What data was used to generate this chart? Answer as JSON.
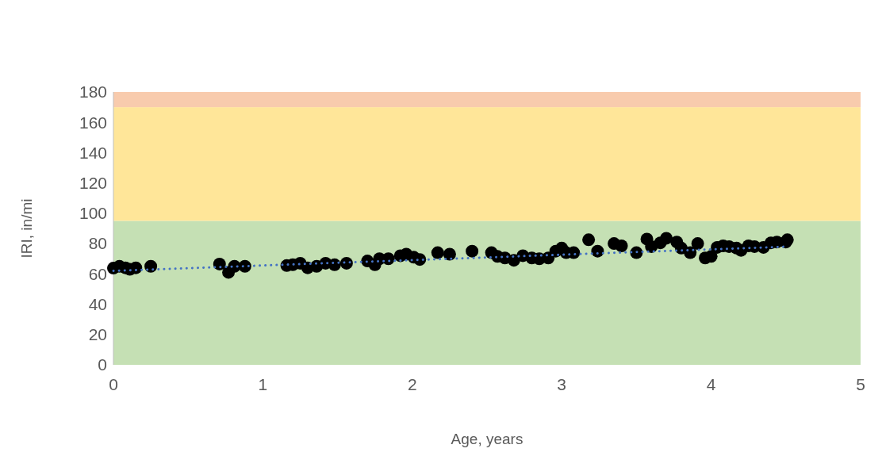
{
  "chart_data": {
    "type": "scatter",
    "xlabel": "Age, years",
    "ylabel": "IRI, in/mi",
    "xlim": [
      0,
      5
    ],
    "xticks": [
      0,
      1,
      2,
      3,
      4,
      5
    ],
    "ylim": [
      0,
      180
    ],
    "yticks": [
      0,
      20,
      40,
      60,
      80,
      100,
      120,
      140,
      160,
      180
    ],
    "grid": false,
    "marker": "circle",
    "bands": [
      {
        "axis": "y",
        "from": 0,
        "to": 95,
        "color": "#c5e0b4"
      },
      {
        "axis": "y",
        "from": 95,
        "to": 170,
        "color": "#ffe699"
      },
      {
        "axis": "y",
        "from": 170,
        "to": 180,
        "color": "#f8cbad"
      }
    ],
    "series": [
      {
        "color": "#000000",
        "x": [
          0,
          0.04,
          0.08,
          0.11,
          0.15,
          0.25,
          0.71,
          0.77,
          0.81,
          0.88,
          1.16,
          1.2,
          1.25,
          1.3,
          1.36,
          1.42,
          1.48,
          1.56,
          1.7,
          1.75,
          1.78,
          1.84,
          1.92,
          1.96,
          2.01,
          2.05,
          2.17,
          2.25,
          2.4,
          2.53,
          2.57,
          2.62,
          2.68,
          2.74,
          2.8,
          2.85,
          2.91,
          2.96,
          3.0,
          3.03,
          3.08,
          3.18,
          3.24,
          3.35,
          3.4,
          3.5,
          3.57,
          3.6,
          3.66,
          3.7,
          3.77,
          3.8,
          3.86,
          3.91,
          3.96,
          4.0,
          4.04,
          4.08,
          4.12,
          4.17,
          4.2,
          4.25,
          4.29,
          4.35,
          4.4,
          4.44,
          4.5,
          4.51
        ],
        "values": [
          63.8,
          65,
          64,
          63,
          64,
          65,
          66.5,
          61,
          65,
          65,
          65.5,
          66,
          67,
          64,
          65,
          67,
          66,
          67,
          68.5,
          66,
          70,
          70,
          72,
          73,
          71,
          69.5,
          74,
          73,
          75,
          74,
          71.5,
          70.5,
          69,
          72,
          70.5,
          70,
          70.5,
          75,
          77,
          74,
          74,
          82.5,
          75,
          80,
          78.5,
          74,
          83,
          78,
          80.5,
          83.5,
          81,
          77,
          74,
          80,
          70.5,
          71.5,
          77.5,
          78.5,
          78,
          77,
          75.5,
          78.5,
          78,
          77.5,
          80.5,
          81,
          81,
          82.5
        ]
      },
      {
        "type": "line",
        "color": "#4472c4",
        "line_style": "dotted",
        "marker": "none",
        "x": [
          0,
          4.51
        ],
        "values": [
          62,
          78
        ]
      }
    ]
  }
}
